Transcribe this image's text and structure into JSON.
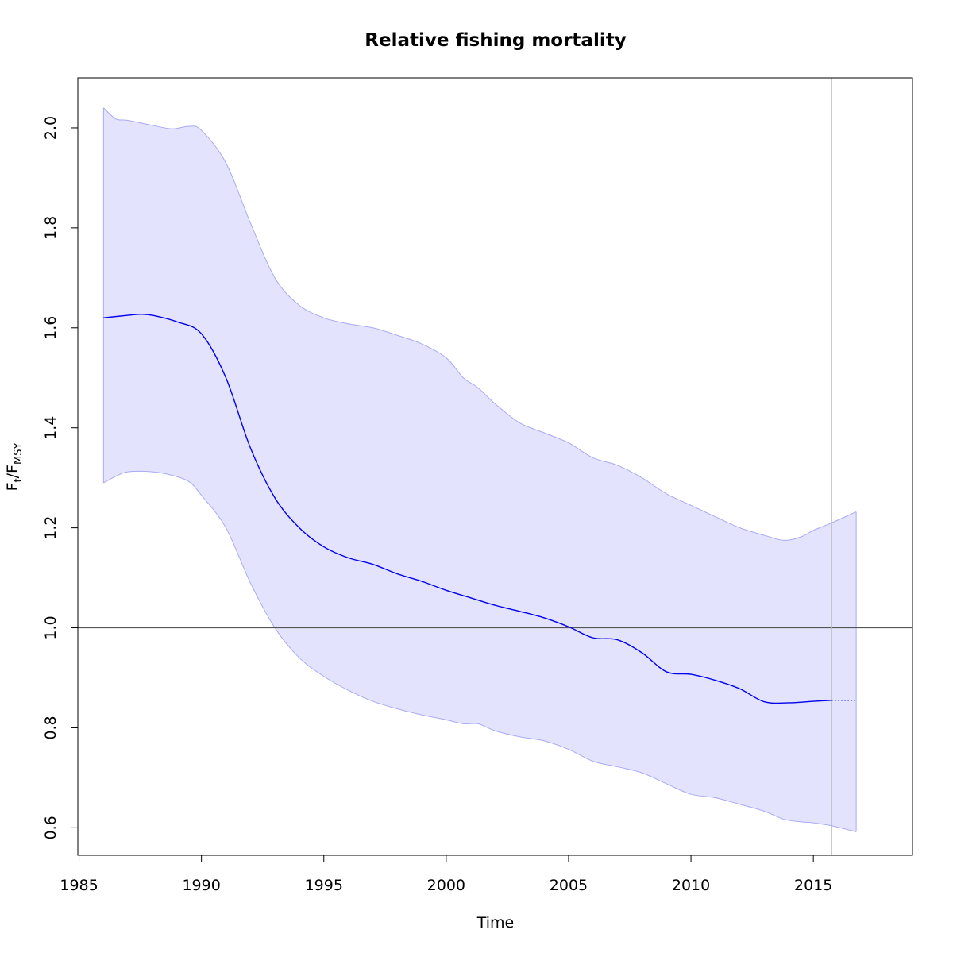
{
  "chart_data": {
    "type": "line",
    "title": "Relative fishing mortality",
    "xlabel": "Time",
    "ylabel": {
      "main": "F",
      "sub1": "t",
      "sep": "/F",
      "sub2": "MSY"
    },
    "xlim": [
      1984.95,
      2019.05
    ],
    "ylim": [
      0.545,
      2.1
    ],
    "x_ticks": [
      1985,
      1990,
      1995,
      2000,
      2005,
      2010,
      2015
    ],
    "y_ticks": [
      0.6,
      0.8,
      1.0,
      1.2,
      1.4,
      1.6,
      1.8,
      2.0
    ],
    "x_tick_labels": [
      "1985",
      "1990",
      "1995",
      "2000",
      "2005",
      "2010",
      "2015"
    ],
    "y_tick_labels": [
      "0.6",
      "0.8",
      "1.0",
      "1.2",
      "1.4",
      "1.6",
      "1.8",
      "2.0"
    ],
    "reference_line_y": 1.0,
    "last_observation_x": 2015.75,
    "series": [
      {
        "role": "estimate",
        "x": [
          1986,
          1987,
          1987.5,
          1988,
          1989,
          1990,
          1991,
          1992,
          1993,
          1994,
          1995,
          1996,
          1997,
          1998,
          1999,
          2000,
          2001,
          2002,
          2003,
          2004,
          2005,
          2006,
          2007,
          2008,
          2009,
          2010,
          2011,
          2012,
          2013,
          2014,
          2015,
          2015.75
        ],
        "y": [
          1.62,
          1.625,
          1.627,
          1.625,
          1.612,
          1.588,
          1.5,
          1.36,
          1.26,
          1.2,
          1.162,
          1.14,
          1.127,
          1.108,
          1.093,
          1.075,
          1.06,
          1.045,
          1.033,
          1.02,
          1.002,
          0.98,
          0.976,
          0.95,
          0.912,
          0.907,
          0.895,
          0.878,
          0.852,
          0.85,
          0.853,
          0.855
        ]
      },
      {
        "role": "projection",
        "x": [
          2015.75,
          2016.75
        ],
        "y": [
          0.855,
          0.855
        ]
      }
    ],
    "band": {
      "x": [
        1986,
        1986.5,
        1987,
        1988,
        1988.8,
        1989.5,
        1990,
        1991,
        1992,
        1993,
        1994,
        1995,
        1996,
        1997,
        1998,
        1999,
        2000,
        2000.7,
        2001.3,
        2002,
        2003,
        2004,
        2005,
        2006,
        2007,
        2008,
        2009,
        2010,
        2011,
        2012,
        2013,
        2013.8,
        2014.5,
        2015,
        2015.75,
        2016.75
      ],
      "upper": [
        2.04,
        2.018,
        2.015,
        2.005,
        1.998,
        2.003,
        1.995,
        1.93,
        1.81,
        1.7,
        1.645,
        1.62,
        1.608,
        1.6,
        1.585,
        1.568,
        1.54,
        1.5,
        1.48,
        1.448,
        1.41,
        1.39,
        1.37,
        1.34,
        1.325,
        1.3,
        1.268,
        1.245,
        1.222,
        1.2,
        1.185,
        1.175,
        1.182,
        1.195,
        1.21,
        1.232
      ],
      "lower": [
        1.29,
        1.303,
        1.312,
        1.312,
        1.305,
        1.292,
        1.265,
        1.2,
        1.09,
        1.0,
        0.94,
        0.903,
        0.875,
        0.853,
        0.838,
        0.826,
        0.816,
        0.808,
        0.808,
        0.794,
        0.782,
        0.774,
        0.757,
        0.733,
        0.722,
        0.71,
        0.688,
        0.667,
        0.66,
        0.647,
        0.633,
        0.617,
        0.612,
        0.61,
        0.604,
        0.592
      ]
    },
    "colors": {
      "line": "#0000ee",
      "band_fill": "#e3e3fd",
      "band_edge": "#aaaaf4",
      "reference_line": "#555555",
      "vertical_line": "#bbbbbb",
      "frame": "#000000"
    },
    "grid": false,
    "legend": "none"
  }
}
